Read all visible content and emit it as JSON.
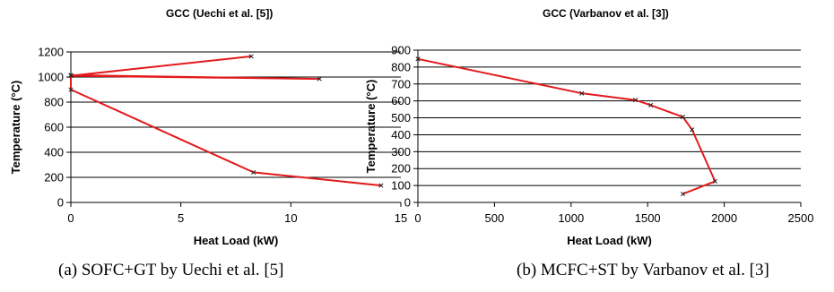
{
  "chart_data": [
    {
      "type": "line",
      "title": "GCC (Uechi et al. [5])",
      "xlabel": "Heat Load (kW)",
      "ylabel": "Temperature (°C)",
      "xlim": [
        0,
        15
      ],
      "ylim": [
        0,
        1200
      ],
      "xticks": [
        "0",
        "5",
        "10",
        "15"
      ],
      "yticks": [
        "0",
        "200",
        "400",
        "600",
        "800",
        "1000",
        "1200"
      ],
      "grid": "horizontal",
      "legend": "none",
      "color": "#e31a1c",
      "series": [
        {
          "x": [
            8.2,
            0.0,
            11.3,
            0.0,
            0.0,
            8.3,
            14.1
          ],
          "y": [
            1165,
            1010,
            985,
            1015,
            900,
            240,
            135
          ]
        }
      ],
      "caption": "(a) SOFC+GT by Uechi et al. [5]"
    },
    {
      "type": "line",
      "title": "GCC (Varbanov et al. [3])",
      "xlabel": "Heat Load (kW)",
      "ylabel": "Temperature (°C)",
      "xlim": [
        0,
        2500
      ],
      "ylim": [
        0,
        900
      ],
      "xticks": [
        "0",
        "500",
        "1000",
        "1500",
        "2000",
        "2500"
      ],
      "yticks": [
        "0",
        "100",
        "200",
        "300",
        "400",
        "500",
        "600",
        "700",
        "800",
        "900"
      ],
      "grid": "horizontal",
      "legend": "none",
      "color": "#e31a1c",
      "series": [
        {
          "x": [
            0,
            1070,
            1420,
            1520,
            1730,
            1790,
            1940,
            1730
          ],
          "y": [
            848,
            645,
            605,
            575,
            505,
            430,
            125,
            50
          ]
        }
      ],
      "caption": "(b) MCFC+ST by Varbanov et al. [3]"
    }
  ]
}
